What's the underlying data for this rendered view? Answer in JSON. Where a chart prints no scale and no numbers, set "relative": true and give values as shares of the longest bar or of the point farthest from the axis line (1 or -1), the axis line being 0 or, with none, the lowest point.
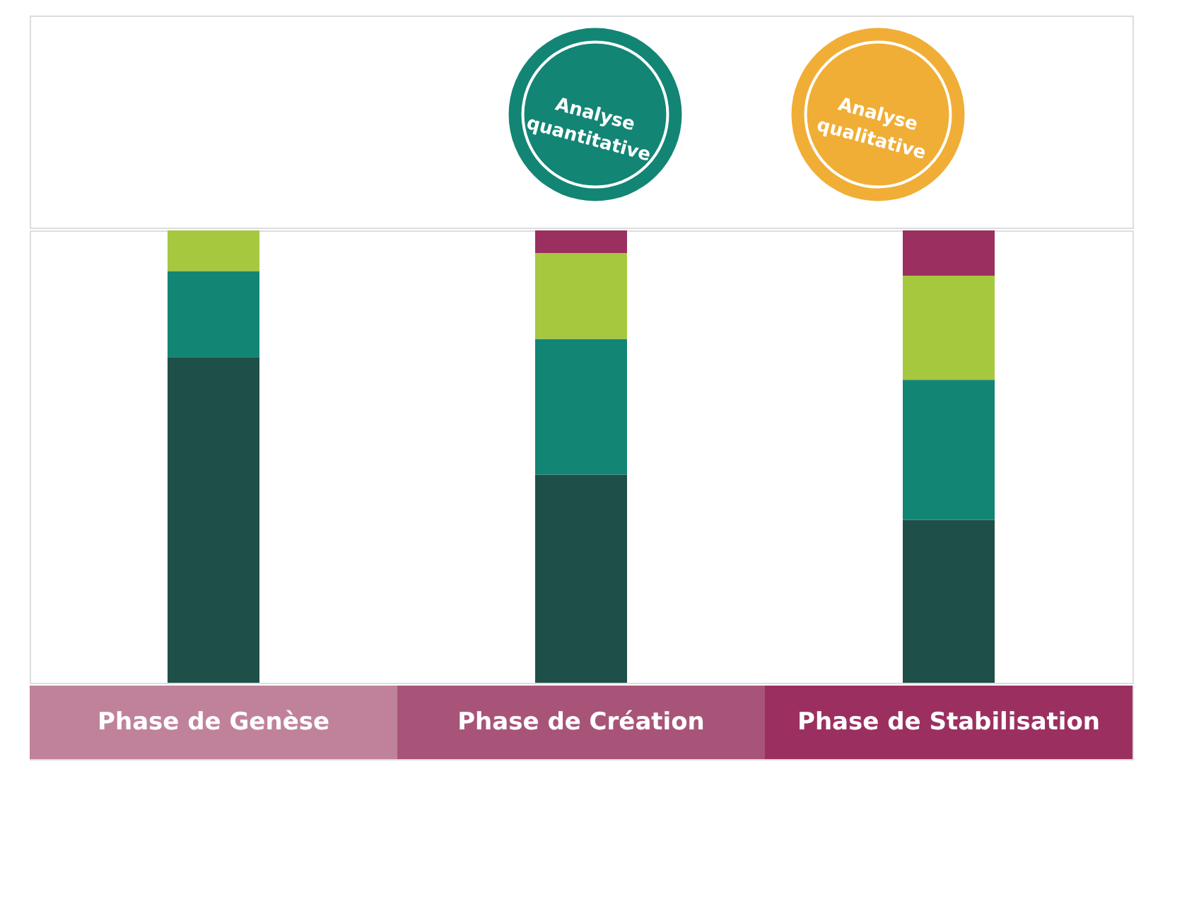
{
  "chart_data": {
    "type": "bar",
    "stacked": true,
    "relative": true,
    "categories": [
      "Phase de Genèse",
      "Phase de Création",
      "Phase de Stabilisation"
    ],
    "series": [
      {
        "color": "#1e4f48",
        "values": [
          0.72,
          0.46,
          0.36
        ]
      },
      {
        "color": "#138575",
        "values": [
          0.19,
          0.3,
          0.31
        ]
      },
      {
        "color": "#a6c83e",
        "values": [
          0.09,
          0.19,
          0.23
        ]
      },
      {
        "color": "#9b3060",
        "values": [
          null,
          0.05,
          0.1
        ]
      }
    ],
    "annotations": [
      "Analyse quantitative",
      "Analyse qualitative"
    ]
  }
}
